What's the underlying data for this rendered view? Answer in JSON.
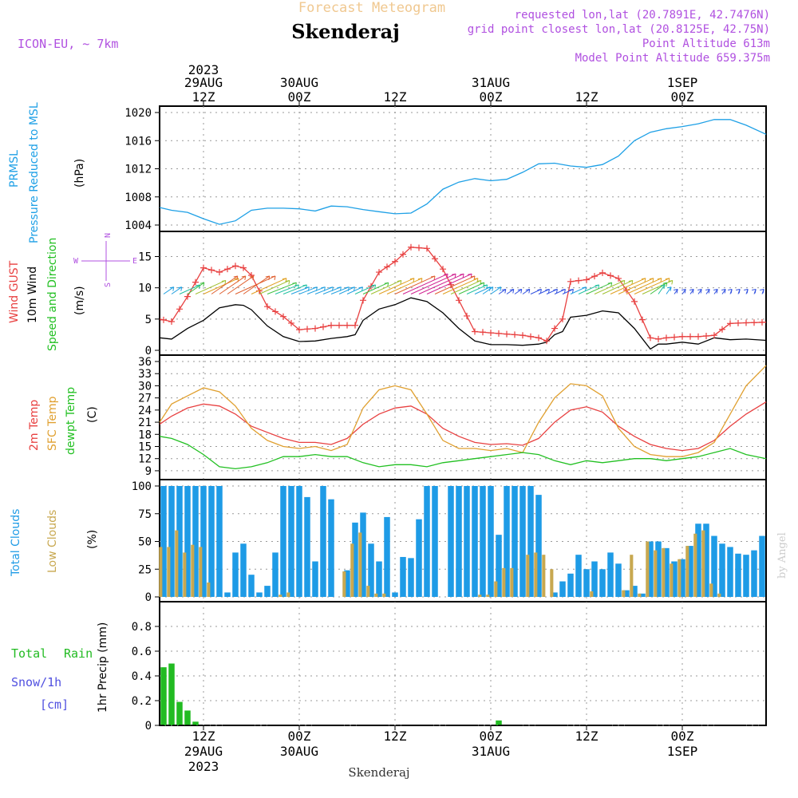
{
  "header": {
    "title_top": "Forecast Meteogram",
    "station": "Skenderaj",
    "model": "ICON-EU, ~ 7km",
    "requested": "requested lon,lat (20.7891E, 42.7476N)",
    "grid_point": "grid point closest lon,lat (20.8125E, 42.75N)",
    "point_alt": "Point Altitude 613m",
    "model_alt": "Model Point Altitude 659.375m",
    "footer_station": "Skenderaj",
    "credit": "by Angel"
  },
  "time_axis": {
    "top_labels": [
      {
        "line1": "2023",
        "line2": "29AUG",
        "line3": "12Z",
        "hour": 12
      },
      {
        "line1": "",
        "line2": "30AUG",
        "line3": "00Z",
        "hour": 24
      },
      {
        "line1": "",
        "line2": "",
        "line3": "12Z",
        "hour": 36
      },
      {
        "line1": "",
        "line2": "31AUG",
        "line3": "00Z",
        "hour": 48
      },
      {
        "line1": "",
        "line2": "",
        "line3": "12Z",
        "hour": 60
      },
      {
        "line1": "",
        "line2": "1SEP",
        "line3": "00Z",
        "hour": 72
      }
    ],
    "bottom_labels": [
      {
        "line1": "12Z",
        "line2": "29AUG",
        "line3": "2023",
        "hour": 12
      },
      {
        "line1": "00Z",
        "line2": "30AUG",
        "line3": "",
        "hour": 24
      },
      {
        "line1": "12Z",
        "line2": "",
        "line3": "",
        "hour": 36
      },
      {
        "line1": "00Z",
        "line2": "31AUG",
        "line3": "",
        "hour": 48
      },
      {
        "line1": "12Z",
        "line2": "",
        "line3": "",
        "hour": 60
      },
      {
        "line1": "00Z",
        "line2": "1SEP",
        "line3": "",
        "hour": 72
      }
    ],
    "start_hour": 6.5,
    "end_hour": 82.5
  },
  "panel_labels": {
    "pressure": {
      "l1": "PRMSL",
      "l2": "Pressure Reduced to MSL",
      "unit": "(hPa)"
    },
    "wind": {
      "l1": "Wind GUST",
      "l2": "10m Wind",
      "l3": "Speed and Direction",
      "unit": "(m/s)",
      "compass_n": "N",
      "compass_s": "S",
      "compass_w": "W",
      "compass_e": "E"
    },
    "temp": {
      "l1": "2m Temp",
      "l2": "SFC Temp",
      "l3": "dewpt Temp",
      "unit": "(C)"
    },
    "cloud": {
      "l1": "Total Clouds",
      "l2": "Low Clouds",
      "unit": "(%)"
    },
    "precip": {
      "l1": "Total",
      "l1b": "Rain",
      "l2": "Snow/1h",
      "l3": "[cm]",
      "unit": "1hr Precip (mm)"
    }
  },
  "colors": {
    "pressure": "#1ea0e6",
    "gust": "#e84040",
    "wind": "#000000",
    "temp2m": "#e84040",
    "sfc": "#e0a030",
    "dewpt": "#22c022",
    "total_cloud": "#1e9be6",
    "low_cloud": "#c8a850",
    "rain": "#22bb22",
    "snow": "#5050e0",
    "title_top": "#f0c890",
    "meta": "#b050e0"
  },
  "chart_data": [
    {
      "type": "line",
      "name": "PRMSL",
      "ylim": [
        1004,
        1020
      ],
      "yticks": [
        1004,
        1008,
        1012,
        1016,
        1020
      ],
      "x": [
        6.5,
        8,
        10,
        12,
        14,
        16,
        18,
        20,
        22,
        24,
        26,
        28,
        30,
        32,
        34,
        36,
        38,
        40,
        42,
        44,
        46,
        48,
        50,
        52,
        54,
        56,
        58,
        60,
        62,
        64,
        66,
        68,
        70,
        72,
        74,
        76,
        78,
        80,
        82.5
      ],
      "values": [
        1006.5,
        1006.1,
        1005.8,
        1004.9,
        1004.1,
        1004.6,
        1006.1,
        1006.4,
        1006.4,
        1006.3,
        1006.0,
        1006.7,
        1006.6,
        1006.2,
        1005.9,
        1005.6,
        1005.7,
        1007.0,
        1009.1,
        1010.1,
        1010.6,
        1010.3,
        1010.5,
        1011.5,
        1012.7,
        1012.8,
        1012.4,
        1012.2,
        1012.6,
        1013.8,
        1016.0,
        1017.2,
        1017.7,
        1018.0,
        1018.4,
        1019.0,
        1019.0,
        1018.2,
        1016.9
      ]
    },
    {
      "type": "line",
      "name": "Wind",
      "ylim": [
        0,
        18
      ],
      "yticks": [
        0,
        5,
        10,
        15
      ],
      "x": [
        6.5,
        8,
        10,
        12,
        14,
        16,
        17,
        18,
        20,
        22,
        24,
        26,
        28,
        30,
        31,
        32,
        34,
        36,
        38,
        40,
        42,
        44,
        46,
        48,
        50,
        52,
        54,
        55,
        56,
        57,
        58,
        60,
        62,
        64,
        66,
        68,
        69,
        70,
        72,
        74,
        76,
        78,
        80,
        82.5
      ],
      "gust": [
        5.0,
        4.6,
        8.6,
        13.2,
        12.5,
        13.5,
        13.2,
        12.0,
        7.0,
        5.4,
        3.3,
        3.5,
        4.0,
        4.0,
        4.0,
        8.0,
        12.5,
        14.2,
        16.5,
        16.3,
        13.0,
        8.0,
        3.0,
        2.8,
        2.6,
        2.4,
        2.0,
        1.5,
        3.5,
        5.0,
        11.0,
        11.3,
        12.4,
        11.5,
        7.8,
        2.0,
        1.8,
        2.0,
        2.2,
        2.2,
        2.4,
        4.3,
        4.4,
        4.5
      ],
      "wind": [
        2.0,
        1.8,
        3.5,
        4.8,
        6.8,
        7.3,
        7.2,
        6.5,
        3.9,
        2.2,
        1.4,
        1.5,
        1.9,
        2.2,
        2.5,
        4.8,
        6.6,
        7.3,
        8.4,
        7.8,
        6.0,
        3.5,
        1.5,
        0.9,
        0.9,
        0.8,
        1.0,
        1.3,
        2.5,
        3.0,
        5.3,
        5.6,
        6.3,
        6.0,
        3.5,
        0.2,
        1.0,
        1.0,
        1.3,
        1.0,
        2.0,
        1.7,
        1.8,
        1.6
      ],
      "barbs_x": [
        7,
        8,
        9,
        10,
        11,
        12,
        13,
        14,
        15,
        16,
        17,
        18,
        19,
        20,
        21,
        22,
        23,
        24,
        25,
        26,
        27,
        28,
        29,
        30,
        31,
        32,
        33,
        34,
        35,
        36,
        37,
        38,
        39,
        40,
        41,
        42,
        43,
        44,
        45,
        46,
        47,
        48,
        49,
        50,
        51,
        52,
        53,
        54,
        55,
        56,
        57,
        58,
        59,
        60,
        61,
        62,
        63,
        64,
        65,
        66,
        67,
        68,
        69,
        70,
        71,
        72,
        73,
        74,
        75,
        76,
        77,
        78,
        79,
        80,
        81,
        82
      ],
      "barbs_speed": [
        2,
        2,
        3,
        4,
        5,
        6,
        7,
        7,
        7,
        7,
        7,
        6,
        5,
        4,
        3,
        3,
        2,
        2,
        2,
        2,
        2,
        2,
        2,
        2,
        3,
        4,
        5,
        6,
        6,
        7,
        8,
        8,
        8,
        8,
        7,
        6,
        5,
        4,
        3,
        2,
        2,
        2,
        1,
        1,
        1,
        1,
        1,
        1,
        1,
        1,
        1,
        2,
        3,
        4,
        5,
        5,
        6,
        6,
        6,
        6,
        5,
        4,
        3,
        2,
        1,
        1,
        1,
        1,
        1,
        1,
        1,
        1,
        1,
        1,
        1,
        1
      ],
      "barbs_dir": [
        "N",
        "N",
        "NW",
        "N",
        "NW",
        "NW",
        "N",
        "N",
        "N",
        "NW",
        "N",
        "NW",
        "NW",
        "W",
        "W",
        "W",
        "W",
        "W",
        "W",
        "W",
        "W",
        "W",
        "SW",
        "SW",
        "SW",
        "SW",
        "SW",
        "SW",
        "SW",
        "SW",
        "SW",
        "SW",
        "SW",
        "SW",
        "SW",
        "SW",
        "SW",
        "SW",
        "SW",
        "SW",
        "S",
        "S",
        "S",
        "S",
        "S",
        "S",
        "SW",
        "SW",
        "SW",
        "SW",
        "SW",
        "SW",
        "SW",
        "SW",
        "SW",
        "SW",
        "SW",
        "SW",
        "SW",
        "SW",
        "SW",
        "S",
        "SE",
        "SE",
        "SE",
        "SE",
        "SE",
        "SE",
        "SE",
        "SE",
        "SE",
        "E",
        "E",
        "E",
        "E",
        "E"
      ]
    },
    {
      "type": "line",
      "name": "Temp",
      "ylim": [
        8,
        36
      ],
      "yticks": [
        9,
        12,
        15,
        18,
        21,
        24,
        27,
        30,
        33,
        36
      ],
      "x": [
        6.5,
        8,
        10,
        12,
        14,
        16,
        18,
        20,
        22,
        24,
        26,
        28,
        30,
        32,
        34,
        36,
        38,
        40,
        42,
        44,
        46,
        48,
        50,
        52,
        54,
        56,
        58,
        60,
        62,
        64,
        66,
        68,
        70,
        72,
        74,
        76,
        78,
        80,
        82.5
      ],
      "t2m": [
        20.5,
        22.5,
        24.5,
        25.5,
        25.0,
        23.0,
        20.0,
        18.5,
        17.0,
        16.0,
        16.0,
        15.5,
        17.0,
        20.5,
        23.0,
        24.5,
        25.0,
        23.0,
        19.5,
        17.5,
        16.0,
        15.5,
        15.7,
        15.3,
        17.0,
        21.0,
        24.0,
        24.8,
        23.5,
        20.0,
        17.5,
        15.5,
        14.5,
        14.0,
        14.5,
        16.5,
        20.0,
        23.0,
        26.0
      ],
      "sfc": [
        21.0,
        25.5,
        27.5,
        29.5,
        28.5,
        25.0,
        19.5,
        16.5,
        15.0,
        14.5,
        15.0,
        14.0,
        15.5,
        24.5,
        29.0,
        30.0,
        29.0,
        23.0,
        16.5,
        14.5,
        14.5,
        14.0,
        14.5,
        13.5,
        21.0,
        27.0,
        30.5,
        30.0,
        27.5,
        19.5,
        15.0,
        13.0,
        12.5,
        12.5,
        13.5,
        16.0,
        23.0,
        30.0,
        35.0
      ],
      "dewpt": [
        17.5,
        17.0,
        15.5,
        13.0,
        10.0,
        9.5,
        10.0,
        11.0,
        12.5,
        12.5,
        13.0,
        12.5,
        12.5,
        11.0,
        10.0,
        10.5,
        10.5,
        10.0,
        11.0,
        11.5,
        12.0,
        12.5,
        13.0,
        13.5,
        13.0,
        11.5,
        10.5,
        11.5,
        11.0,
        11.5,
        12.0,
        12.0,
        11.5,
        12.0,
        12.5,
        13.5,
        14.5,
        13.0,
        12.0
      ]
    },
    {
      "type": "bar",
      "name": "Clouds",
      "ylim": [
        0,
        100
      ],
      "yticks": [
        0,
        25,
        50,
        75,
        100
      ],
      "x": [
        7,
        8,
        9,
        10,
        11,
        12,
        13,
        14,
        15,
        16,
        17,
        18,
        19,
        20,
        21,
        22,
        23,
        24,
        25,
        26,
        27,
        28,
        29,
        30,
        31,
        32,
        33,
        34,
        35,
        36,
        37,
        38,
        39,
        40,
        41,
        42,
        43,
        44,
        45,
        46,
        47,
        48,
        49,
        50,
        51,
        52,
        53,
        54,
        55,
        56,
        57,
        58,
        59,
        60,
        61,
        62,
        63,
        64,
        65,
        66,
        67,
        68,
        69,
        70,
        71,
        72,
        73,
        74,
        75,
        76,
        77,
        78,
        79,
        80,
        81,
        82
      ],
      "total": [
        100,
        100,
        100,
        100,
        100,
        100,
        100,
        100,
        4,
        40,
        48,
        20,
        4,
        10,
        40,
        100,
        100,
        100,
        90,
        32,
        100,
        88,
        0,
        24,
        67,
        76,
        48,
        32,
        72,
        4,
        36,
        35,
        70,
        100,
        100,
        0,
        100,
        100,
        100,
        100,
        100,
        100,
        56,
        100,
        100,
        100,
        100,
        92,
        0,
        4,
        14,
        21,
        38,
        25,
        32,
        25,
        40,
        30,
        6,
        10,
        3,
        50,
        50,
        44,
        32,
        34,
        46,
        66,
        66,
        55,
        48,
        45,
        39,
        38,
        42,
        55
      ],
      "low": [
        45,
        45,
        60,
        40,
        47,
        45,
        13,
        0,
        0,
        0,
        0,
        0,
        0,
        0,
        0,
        2,
        4,
        0,
        0,
        0,
        0,
        0,
        0,
        23,
        48,
        58,
        10,
        3,
        3,
        0,
        0,
        0,
        0,
        0,
        0,
        0,
        0,
        0,
        0,
        0,
        2,
        2,
        14,
        26,
        26,
        0,
        38,
        40,
        38,
        25,
        0,
        0,
        0,
        0,
        5,
        0,
        0,
        0,
        6,
        38,
        3,
        50,
        42,
        44,
        30,
        34,
        46,
        57,
        60,
        12,
        3,
        0,
        0,
        0,
        0,
        0
      ]
    },
    {
      "type": "bar",
      "name": "Precip",
      "ylim": [
        0,
        1.0
      ],
      "yticks": [
        0,
        0.2,
        0.4,
        0.6,
        0.8
      ],
      "x": [
        7,
        8,
        9,
        10,
        11,
        49
      ],
      "rain": [
        0.47,
        0.5,
        0.19,
        0.12,
        0.03,
        0.04
      ],
      "snow": [
        0,
        0,
        0,
        0,
        0,
        0
      ]
    }
  ]
}
